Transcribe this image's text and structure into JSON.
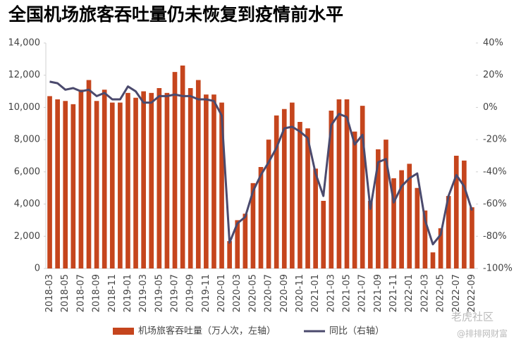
{
  "chart_data": {
    "type": "bar_line",
    "title": "全国机场旅客吞吐量仍未恢复到疫情前水平",
    "categories": [
      "2018-03",
      null,
      "2018-05",
      null,
      "2018-07",
      null,
      "2018-09",
      null,
      "2018-11",
      null,
      "2019-01",
      null,
      "2019-03",
      null,
      "2019-05",
      null,
      "2019-07",
      null,
      "2019-09",
      null,
      "2019-11",
      null,
      "2020-01",
      null,
      "2020-03",
      null,
      "2020-05",
      null,
      "2020-07",
      null,
      "2020-09",
      null,
      "2020-11",
      null,
      "2021-01",
      null,
      "2021-03",
      null,
      "2021-05",
      null,
      "2021-07",
      null,
      "2021-09",
      null,
      "2021-11",
      null,
      "2022-01",
      null,
      "2022-03",
      null,
      "2022-05",
      null,
      "2022-07",
      null,
      "2022-09"
    ],
    "series": [
      {
        "name": "机场旅客吞吐量（万人次，左轴）",
        "color": "#c5451d",
        "axis": "y",
        "values": [
          10700,
          10500,
          10400,
          10200,
          11100,
          11700,
          10400,
          11100,
          10300,
          10300,
          10900,
          10600,
          11000,
          10900,
          11200,
          10900,
          12200,
          12600,
          11200,
          11700,
          10800,
          10800,
          10300,
          1700,
          3000,
          3400,
          5300,
          6300,
          8000,
          9500,
          9900,
          10300,
          9100,
          8700,
          6200,
          4200,
          9800,
          10500,
          10500,
          8500,
          10100,
          4200,
          7400,
          8000,
          5600,
          6100,
          6500,
          5000,
          3600,
          1000,
          2500,
          4500,
          7000,
          6700,
          3800
        ]
      },
      {
        "name": "同比（右轴）",
        "color": "#4b4a6d",
        "axis": "y2",
        "values": [
          16,
          15,
          11,
          12,
          10,
          11,
          7,
          9,
          5,
          5,
          13,
          10,
          3,
          3,
          7,
          7,
          8,
          7,
          7,
          5,
          5,
          4,
          -5,
          -84,
          -72,
          -68,
          -52,
          -42,
          -34,
          -25,
          -13,
          -12,
          -15,
          -19,
          -41,
          -55,
          -11,
          -4,
          -6,
          -23,
          -17,
          -63,
          -34,
          -32,
          -59,
          -49,
          -44,
          -41,
          -70,
          -85,
          -79,
          -55,
          -42,
          -49,
          -64
        ]
      }
    ],
    "ylim": [
      0,
      14000
    ],
    "yticks": [
      0,
      {
        "value": 2000,
        "label": "2,000"
      },
      {
        "value": 4000,
        "label": "4,000"
      },
      {
        "value": 6000,
        "label": "6,000"
      },
      {
        "value": 8000,
        "label": "8,000"
      },
      {
        "value": 10000,
        "label": "10,000"
      },
      {
        "value": 12000,
        "label": "12,000"
      },
      {
        "value": 14000,
        "label": "14,000"
      }
    ],
    "y2lim": [
      -100,
      40
    ],
    "y2ticks": [
      {
        "value": -100,
        "label": "-100%"
      },
      {
        "value": -80,
        "label": "-80%"
      },
      {
        "value": -60,
        "label": "-60%"
      },
      {
        "value": -40,
        "label": "-40%"
      },
      {
        "value": -20,
        "label": "-20%"
      },
      {
        "value": 0,
        "label": "0%"
      },
      {
        "value": 20,
        "label": "20%"
      },
      {
        "value": 40,
        "label": "40%"
      }
    ],
    "grid": false,
    "legend": "bottom",
    "watermarks": [
      "老虎社区",
      "@排排网财富"
    ]
  }
}
